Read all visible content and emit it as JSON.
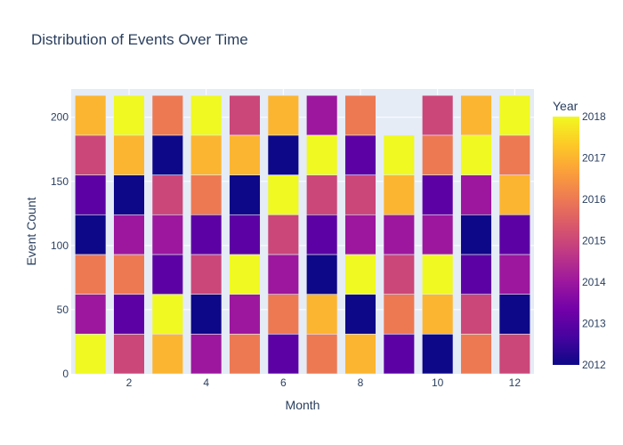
{
  "chart_data": {
    "type": "bar",
    "stacked": true,
    "title": "Distribution of Events Over Time",
    "xlabel": "Month",
    "ylabel": "Event Count",
    "ylim": [
      0,
      222
    ],
    "x": [
      1,
      2,
      3,
      4,
      5,
      6,
      7,
      8,
      9,
      10,
      11,
      12
    ],
    "x_tick_labels": [
      "2",
      "4",
      "6",
      "8",
      "10",
      "12"
    ],
    "x_tick_values": [
      2,
      4,
      6,
      8,
      10,
      12
    ],
    "y_ticks": [
      0,
      50,
      100,
      150,
      200
    ],
    "plot_background": "#e5ecf6",
    "grid": true,
    "colorbar": {
      "title": "Year",
      "min": 2012,
      "max": 2018,
      "ticks": [
        "2012",
        "2013",
        "2014",
        "2015",
        "2016",
        "2017",
        "2018"
      ],
      "colorscale": [
        "#0d0887",
        "#46039f",
        "#7201a8",
        "#9c179e",
        "#bd3786",
        "#d8576b",
        "#ed7953",
        "#fb9f3a",
        "#fdca26",
        "#f0f921"
      ]
    },
    "segment_height": 31,
    "segments_by_month": [
      [
        2018,
        2014,
        2016,
        2012,
        2013,
        2015,
        2017
      ],
      [
        2015,
        2013,
        2016,
        2014,
        2012,
        2017,
        2018
      ],
      [
        2017,
        2018,
        2013,
        2014,
        2015,
        2012,
        2016
      ],
      [
        2014,
        2012,
        2015,
        2013,
        2016,
        2017,
        2018
      ],
      [
        2016,
        2014,
        2018,
        2013,
        2012,
        2017,
        2015
      ],
      [
        2013,
        2016,
        2014,
        2015,
        2018,
        2012,
        2017
      ],
      [
        2016,
        2017,
        2012,
        2013,
        2015,
        2018,
        2014
      ],
      [
        2017,
        2012,
        2018,
        2014,
        2015,
        2013,
        2016
      ],
      [
        2013,
        2016,
        2015,
        2014,
        2017,
        2018
      ],
      [
        2012,
        2017,
        2018,
        2014,
        2013,
        2016,
        2015
      ],
      [
        2016,
        2015,
        2013,
        2012,
        2014,
        2018,
        2017
      ],
      [
        2015,
        2012,
        2014,
        2013,
        2017,
        2016,
        2018
      ]
    ]
  }
}
